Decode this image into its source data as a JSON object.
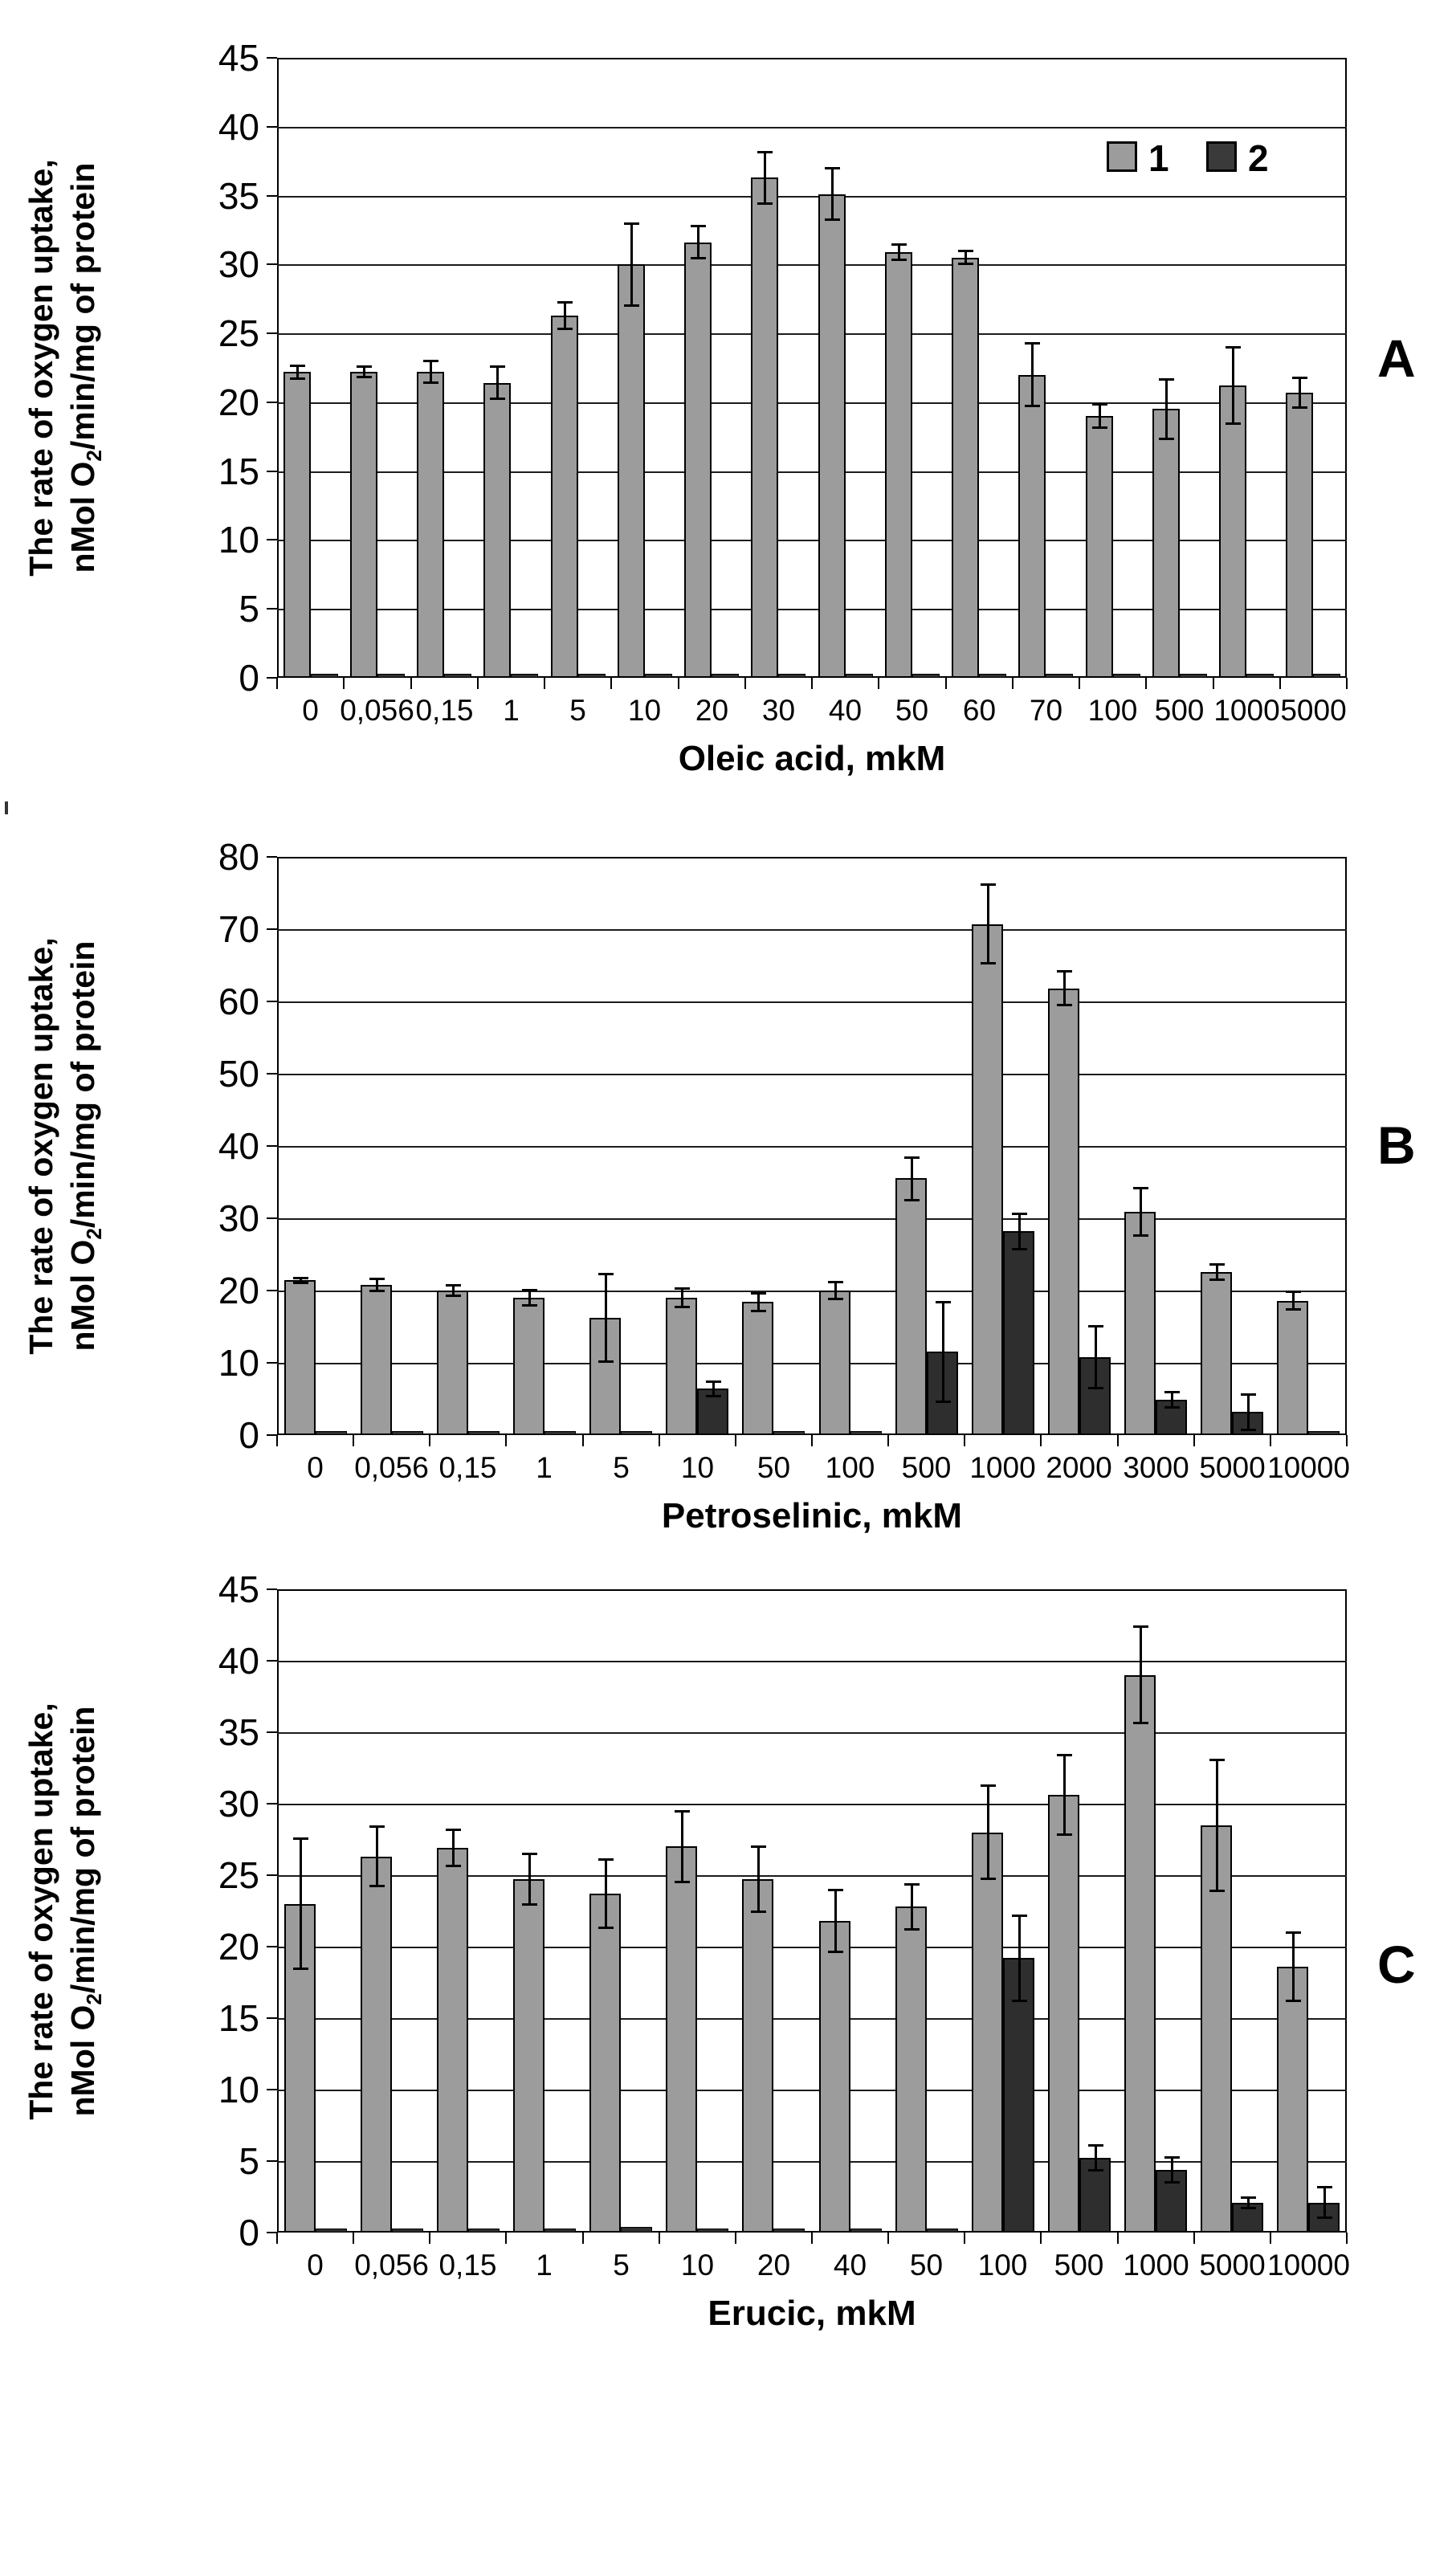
{
  "page": {
    "background_color": "#ffffff"
  },
  "legend": {
    "items": [
      {
        "label": "1",
        "color": "#9c9c9c"
      },
      {
        "label": "2",
        "color": "#3a3a3a"
      }
    ]
  },
  "chart_data": [
    {
      "panel_label": "A",
      "type": "bar",
      "xlabel": "Oleic acid, mkM",
      "ylabel_line1": "The rate of oxygen uptake,",
      "ylabel_line2_pre": "nMol O",
      "ylabel_line2_sub": "2",
      "ylabel_line2_post": "/min/mg of protein",
      "ylim": [
        0,
        45
      ],
      "ytick_step": 5,
      "grid": true,
      "legend_position": "top-right-inside",
      "categories": [
        "0",
        "0,056",
        "0,15",
        "1",
        "5",
        "10",
        "20",
        "30",
        "40",
        "50",
        "60",
        "70",
        "100",
        "500",
        "1000",
        "5000"
      ],
      "series": [
        {
          "name": "1",
          "color": "#9c9c9c",
          "values": [
            22.2,
            22.2,
            22.2,
            21.4,
            26.3,
            30.0,
            31.6,
            36.3,
            35.1,
            30.9,
            30.5,
            22.0,
            19.0,
            19.5,
            21.2,
            20.7
          ],
          "errors": [
            0.5,
            0.4,
            0.8,
            1.2,
            1.0,
            3.0,
            1.2,
            1.9,
            1.9,
            0.6,
            0.5,
            2.3,
            0.9,
            2.2,
            2.8,
            1.1
          ]
        },
        {
          "name": "2",
          "color": "#2e2e2e",
          "values": [
            0.2,
            0.2,
            0.2,
            0.2,
            0.2,
            0.2,
            0.2,
            0.2,
            0.2,
            0.2,
            0.2,
            0.2,
            0.2,
            0.2,
            0.2,
            0.2
          ],
          "errors": [
            0,
            0,
            0,
            0,
            0,
            0,
            0,
            0,
            0,
            0,
            0,
            0,
            0,
            0,
            0,
            0
          ]
        }
      ]
    },
    {
      "panel_label": "B",
      "type": "bar",
      "xlabel": "Petroselinic, mkM",
      "ylabel_line1": "The rate of oxygen uptake,",
      "ylabel_line2_pre": "nMol O",
      "ylabel_line2_sub": "2",
      "ylabel_line2_post": "/min/mg of protein",
      "ylim": [
        0,
        80
      ],
      "ytick_step": 10,
      "grid": true,
      "legend_position": "none",
      "categories": [
        "0",
        "0,056",
        "0,15",
        "1",
        "5",
        "10",
        "50",
        "100",
        "500",
        "1000",
        "2000",
        "3000",
        "5000",
        "10000"
      ],
      "series": [
        {
          "name": "1",
          "color": "#9c9c9c",
          "values": [
            21.4,
            20.8,
            20.0,
            19.0,
            16.2,
            19.0,
            18.4,
            20.0,
            35.5,
            70.7,
            61.8,
            30.9,
            22.6,
            18.6
          ],
          "errors": [
            0.4,
            0.9,
            0.8,
            1.1,
            6.1,
            1.3,
            1.3,
            1.2,
            3.0,
            5.5,
            2.4,
            3.3,
            1.1,
            1.3
          ]
        },
        {
          "name": "2",
          "color": "#2e2e2e",
          "values": [
            0.2,
            0.2,
            0.2,
            0.2,
            0.2,
            6.4,
            0.2,
            0.2,
            11.5,
            28.2,
            10.8,
            4.9,
            3.2,
            0.3
          ],
          "errors": [
            0,
            0,
            0,
            0,
            0,
            1.1,
            0,
            0,
            6.9,
            2.5,
            4.3,
            1.1,
            2.5,
            0
          ]
        }
      ]
    },
    {
      "panel_label": "C",
      "type": "bar",
      "xlabel": "Erucic, mkM",
      "ylabel_line1": "The rate of oxygen uptake,",
      "ylabel_line2_pre": "nMol O",
      "ylabel_line2_sub": "2",
      "ylabel_line2_post": "/min/mg of protein",
      "ylim": [
        0,
        45
      ],
      "ytick_step": 5,
      "grid": true,
      "legend_position": "none",
      "categories": [
        "0",
        "0,056",
        "0,15",
        "1",
        "5",
        "10",
        "20",
        "40",
        "50",
        "100",
        "500",
        "1000",
        "5000",
        "10000"
      ],
      "series": [
        {
          "name": "1",
          "color": "#9c9c9c",
          "values": [
            23.0,
            26.3,
            26.9,
            24.7,
            23.7,
            27.0,
            24.7,
            21.8,
            22.8,
            28.0,
            30.6,
            39.0,
            28.5,
            18.6
          ],
          "errors": [
            4.6,
            2.1,
            1.3,
            1.8,
            2.4,
            2.5,
            2.3,
            2.2,
            1.6,
            3.3,
            2.8,
            3.4,
            4.6,
            2.4
          ]
        },
        {
          "name": "2",
          "color": "#2e2e2e",
          "values": [
            0.2,
            0.2,
            0.2,
            0.2,
            0.4,
            0.2,
            0.2,
            0.2,
            0.2,
            19.2,
            5.2,
            4.4,
            2.1,
            2.1
          ],
          "errors": [
            0,
            0,
            0,
            0,
            0,
            0,
            0,
            0,
            0,
            3.0,
            0.9,
            0.9,
            0.4,
            1.1
          ]
        }
      ]
    }
  ]
}
